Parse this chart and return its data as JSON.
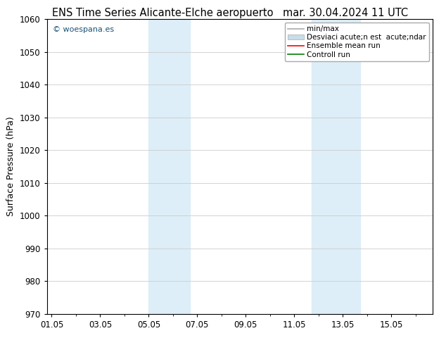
{
  "title_left": "ENS Time Series Alicante-Elche aeropuerto",
  "title_right": "mar. 30.04.2024 11 UTC",
  "ylabel": "Surface Pressure (hPa)",
  "ylim": [
    970,
    1060
  ],
  "yticks": [
    970,
    980,
    990,
    1000,
    1010,
    1020,
    1030,
    1040,
    1050,
    1060
  ],
  "xlim_start": -0.2,
  "xlim_end": 15.7,
  "xtick_labels": [
    "01.05",
    "03.05",
    "05.05",
    "07.05",
    "09.05",
    "11.05",
    "13.05",
    "15.05"
  ],
  "xtick_positions": [
    0,
    2,
    4,
    6,
    8,
    10,
    12,
    14
  ],
  "background_color": "#ffffff",
  "plot_bg_color": "#ffffff",
  "shaded_bands": [
    {
      "x_start": 4.0,
      "x_end": 5.7,
      "color": "#ddeef8"
    },
    {
      "x_start": 10.7,
      "x_end": 12.7,
      "color": "#ddeef8"
    }
  ],
  "watermark": "© woespana.es",
  "watermark_color": "#1a5276",
  "legend_line1": "min/max",
  "legend_line2": "Desviaci acute;n est  acute;ndar",
  "legend_line3": "Ensemble mean run",
  "legend_line4": "Controll run",
  "legend_color1": "#aaaaaa",
  "legend_color2": "#c8dcea",
  "legend_color3": "#ff0000",
  "legend_color4": "#008000",
  "grid_color": "#cccccc",
  "title_fontsize": 10.5,
  "tick_fontsize": 8.5,
  "ylabel_fontsize": 9,
  "legend_fontsize": 7.5
}
